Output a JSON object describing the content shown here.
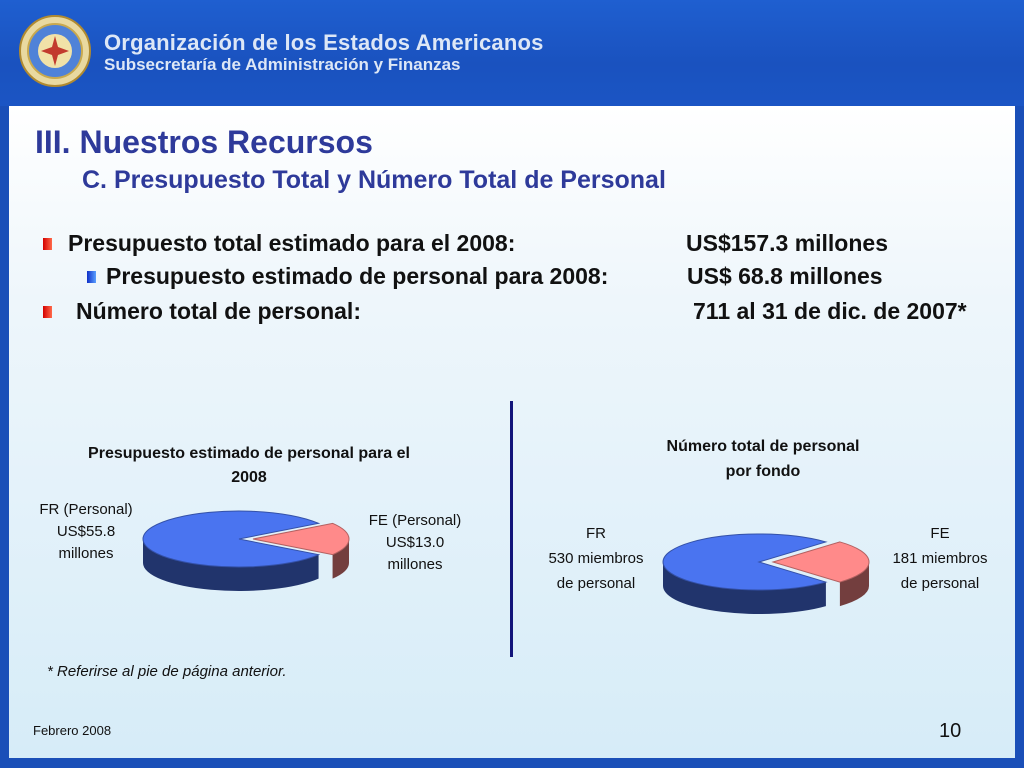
{
  "header": {
    "org_name": "Organización de los Estados Americanos",
    "org_subtitle": "Subsecretaría de Administración y Finanzas"
  },
  "slide": {
    "title": "III. Nuestros Recursos",
    "subtitle": "C. Presupuesto Total y Número Total de Personal",
    "bullets": [
      {
        "label": "Presupuesto total estimado para el 2008:",
        "value": "US$157.3 millones"
      },
      {
        "label": "Presupuesto estimado de personal para 2008:",
        "value": "US$  68.8 millones"
      },
      {
        "label": "Número total de personal:",
        "value": "711 al 31 de dic. de 2007*"
      }
    ],
    "footnote": "* Referirse al pie de página anterior.",
    "date": "Febrero 2008",
    "page_number": "10"
  },
  "colors": {
    "blue_slice": "#4a74f0",
    "red_slice": "#ff8a8a",
    "title_color": "#2e3a9a",
    "header_blue": "#1a4fb8"
  },
  "chart_data": [
    {
      "type": "pie",
      "title": "Presupuesto estimado de personal para el 2008",
      "title_lines": [
        "Presupuesto estimado de personal para el",
        "2008"
      ],
      "categories": [
        "FR (Personal)",
        "FE (Personal)"
      ],
      "values": [
        55.8,
        13.0
      ],
      "units": "US$ millones",
      "labels": [
        [
          "FR (Personal)",
          "US$55.8",
          "millones"
        ],
        [
          "FE (Personal)",
          "US$13.0",
          "millones"
        ]
      ]
    },
    {
      "type": "pie",
      "title": "Número total de personal por fondo",
      "title_lines": [
        "Número total de personal",
        "por fondo"
      ],
      "categories": [
        "FR",
        "FE"
      ],
      "values": [
        530,
        181
      ],
      "units": "miembros de personal",
      "labels": [
        [
          "FR",
          "530 miembros",
          "de personal"
        ],
        [
          "FE",
          "181 miembros",
          "de personal"
        ]
      ]
    }
  ]
}
